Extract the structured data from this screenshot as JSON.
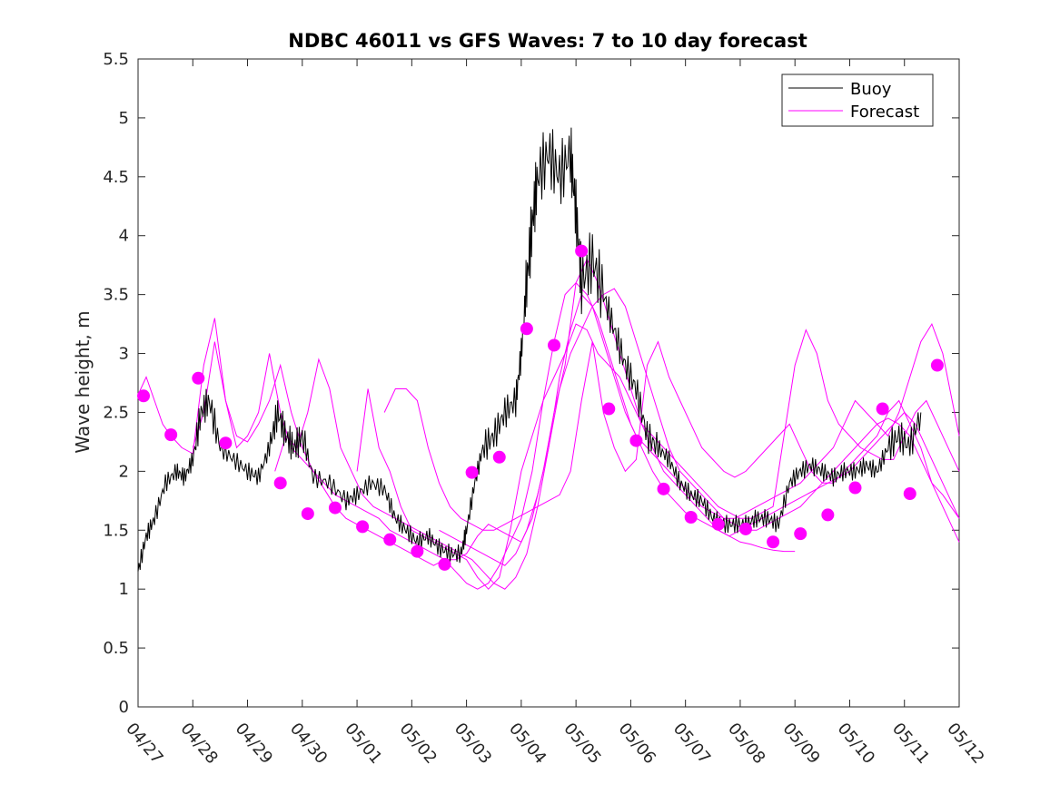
{
  "chart_data": {
    "type": "line",
    "title": "NDBC 46011 vs GFS Waves: 7 to 10 day forecast",
    "xlabel": "",
    "ylabel": "Wave height, m",
    "xlim": [
      0,
      15
    ],
    "ylim": [
      0,
      5.5
    ],
    "x_units": "days since 04/27",
    "x_tick_values": [
      0,
      1,
      2,
      3,
      4,
      5,
      6,
      7,
      8,
      9,
      10,
      11,
      12,
      13,
      14,
      15
    ],
    "x_tick_labels": [
      "04/27",
      "04/28",
      "04/29",
      "04/30",
      "05/01",
      "05/02",
      "05/03",
      "05/04",
      "05/05",
      "05/06",
      "05/07",
      "05/08",
      "05/09",
      "05/10",
      "05/11",
      "05/12"
    ],
    "y_tick_values": [
      0,
      0.5,
      1,
      1.5,
      2,
      2.5,
      3,
      3.5,
      4,
      4.5,
      5,
      5.5
    ],
    "y_tick_labels": [
      "0",
      "0.5",
      "1",
      "1.5",
      "2",
      "2.5",
      "3",
      "3.5",
      "4",
      "4.5",
      "5",
      "5.5"
    ],
    "grid": false,
    "legend_position": "top-right",
    "legend": [
      {
        "name": "Buoy",
        "color": "#000000",
        "marker": "line"
      },
      {
        "name": "Forecast",
        "color": "#ff00ff",
        "marker": "line"
      }
    ],
    "colors": {
      "buoy": "#000000",
      "forecast": "#ff00ff"
    },
    "buoy_series": {
      "name": "Buoy",
      "x": [
        0,
        0.15,
        0.3,
        0.5,
        0.7,
        0.85,
        1.0,
        1.15,
        1.3,
        1.5,
        1.75,
        2.0,
        2.2,
        2.4,
        2.55,
        2.7,
        2.85,
        3.0,
        3.2,
        3.5,
        3.8,
        4.0,
        4.25,
        4.5,
        4.7,
        4.9,
        5.1,
        5.3,
        5.5,
        5.7,
        5.9,
        6.0,
        6.15,
        6.3,
        6.5,
        6.7,
        6.9,
        7.0,
        7.1,
        7.2,
        7.3,
        7.5,
        7.7,
        7.9,
        8.0,
        8.1,
        8.3,
        8.5,
        8.7,
        8.9,
        9.1,
        9.3,
        9.5,
        9.7,
        9.9,
        10.1,
        10.3,
        10.5,
        10.7,
        10.9,
        11.1,
        11.3,
        11.5,
        11.7,
        11.9,
        12.1,
        12.3,
        12.5,
        12.7,
        12.9,
        13.1,
        13.3,
        13.5,
        13.7,
        13.9,
        14.1,
        14.3
      ],
      "y": [
        1.15,
        1.45,
        1.6,
        1.9,
        2.0,
        1.95,
        2.1,
        2.5,
        2.6,
        2.2,
        2.1,
        2.0,
        1.95,
        2.2,
        2.5,
        2.3,
        2.2,
        2.3,
        1.95,
        1.9,
        1.75,
        1.8,
        1.9,
        1.85,
        1.6,
        1.5,
        1.4,
        1.45,
        1.35,
        1.3,
        1.3,
        1.5,
        1.9,
        2.2,
        2.3,
        2.5,
        2.6,
        3.0,
        3.6,
        4.1,
        4.5,
        4.7,
        4.5,
        4.7,
        4.2,
        3.6,
        3.8,
        3.5,
        3.2,
        2.9,
        2.7,
        2.3,
        2.2,
        2.1,
        1.9,
        1.8,
        1.75,
        1.6,
        1.55,
        1.55,
        1.55,
        1.6,
        1.6,
        1.55,
        1.9,
        2.0,
        2.05,
        2.0,
        1.95,
        2.0,
        2.0,
        2.05,
        2.0,
        2.2,
        2.3,
        2.2,
        2.5
      ]
    },
    "forecast_lines": [
      {
        "x": [
          0.0,
          0.15,
          0.3,
          0.45,
          0.6,
          0.8,
          1.0,
          1.2,
          1.4,
          1.6,
          1.8,
          2.0,
          2.2,
          2.4,
          2.6,
          2.8,
          3.0,
          3.2,
          3.4,
          3.6,
          3.8,
          4.0,
          4.2,
          4.4,
          4.6,
          4.8,
          5.0,
          5.2,
          5.4,
          5.6,
          5.8,
          6.0,
          6.2,
          6.4,
          6.6,
          6.8,
          7.0,
          7.2,
          7.4,
          7.6,
          7.8,
          8.0,
          8.2,
          8.4,
          8.6,
          8.8,
          9.0,
          9.2,
          9.4,
          9.6,
          9.8,
          10.0,
          10.2,
          10.4,
          10.6,
          10.8,
          11.0,
          11.2,
          11.4,
          11.6,
          11.8,
          12.0,
          12.2,
          12.4,
          12.6,
          12.8,
          13.0,
          13.2,
          13.4,
          13.6,
          13.8,
          14.0,
          14.2,
          14.4,
          14.6,
          14.8,
          15.0
        ],
        "y": [
          2.65,
          2.8,
          2.6,
          2.4,
          2.3,
          2.2,
          2.15,
          2.9,
          3.3,
          2.6,
          2.3,
          2.25,
          2.4,
          2.6,
          2.9,
          2.5,
          2.2,
          2.0,
          1.85,
          1.7,
          1.6,
          1.55,
          1.5,
          1.45,
          1.4,
          1.35,
          1.3,
          1.25,
          1.2,
          1.25,
          1.25,
          1.3,
          1.45,
          1.55,
          1.5,
          1.45,
          1.4,
          1.6,
          2.0,
          2.5,
          2.9,
          3.6,
          3.8,
          3.6,
          3.3,
          3.0,
          2.7,
          2.4,
          2.2,
          2.0,
          1.9,
          1.8,
          1.7,
          1.6,
          1.5,
          1.45,
          1.5,
          1.55,
          1.6,
          1.65,
          1.7,
          1.75,
          1.8,
          1.85,
          1.9,
          1.95,
          2.0,
          2.1,
          2.2,
          2.3,
          2.4,
          2.5,
          2.4,
          2.2,
          2.0,
          1.8,
          1.6
        ]
      },
      {
        "x": [
          1.0,
          1.2,
          1.4,
          1.6,
          1.8,
          2.0,
          2.2,
          2.4,
          2.6,
          2.8,
          3.0,
          3.2,
          3.4,
          3.6,
          3.8,
          4.0,
          4.2,
          4.4,
          4.6,
          4.8,
          5.0,
          5.2,
          5.4,
          5.6,
          5.8,
          6.0,
          6.2,
          6.4,
          6.6,
          6.8,
          7.0,
          7.2,
          7.4,
          7.6,
          7.8,
          8.0,
          8.2,
          8.4,
          8.6,
          8.8,
          9.0,
          9.2,
          9.4,
          9.6,
          9.8,
          10.0,
          10.2,
          10.4,
          10.6,
          10.8,
          11.0,
          11.2,
          11.4,
          11.6,
          11.8,
          12.0
        ],
        "y": [
          2.2,
          2.5,
          3.1,
          2.6,
          2.2,
          2.3,
          2.5,
          3.0,
          2.5,
          2.2,
          2.1,
          2.0,
          1.9,
          1.8,
          1.75,
          1.7,
          1.65,
          1.6,
          1.5,
          1.45,
          1.4,
          1.35,
          1.3,
          1.25,
          1.15,
          1.05,
          1.0,
          1.05,
          1.2,
          1.4,
          1.6,
          2.0,
          2.6,
          3.1,
          3.5,
          3.6,
          3.5,
          3.3,
          3.0,
          2.7,
          2.4,
          2.2,
          2.0,
          1.85,
          1.75,
          1.65,
          1.6,
          1.55,
          1.5,
          1.45,
          1.4,
          1.38,
          1.35,
          1.33,
          1.32,
          1.32
        ]
      },
      {
        "x": [
          2.5,
          2.7,
          2.9,
          3.1,
          3.3,
          3.5,
          3.7,
          3.9,
          4.1,
          4.3,
          4.5,
          4.7,
          4.9,
          5.1,
          5.3,
          5.5,
          5.7,
          5.9,
          6.1,
          6.3,
          6.5,
          6.7,
          6.9,
          7.1,
          7.3,
          7.5,
          7.7,
          7.9,
          8.1,
          8.3,
          8.5,
          8.7,
          8.9,
          9.1,
          9.3,
          9.5,
          9.7,
          9.9,
          10.1,
          10.3,
          10.5,
          10.7,
          10.9,
          11.1,
          11.3,
          11.5,
          11.7,
          11.9,
          12.1,
          12.3,
          12.5,
          12.7,
          12.9,
          13.1,
          13.3,
          13.5,
          13.7,
          13.9,
          14.1,
          14.3,
          14.5,
          14.7,
          15.0
        ],
        "y": [
          2.0,
          2.3,
          2.2,
          2.5,
          2.95,
          2.7,
          2.2,
          2.0,
          1.8,
          1.7,
          1.65,
          1.6,
          1.55,
          1.5,
          1.45,
          1.4,
          1.35,
          1.3,
          1.25,
          1.15,
          1.05,
          1.0,
          1.1,
          1.3,
          1.7,
          2.2,
          2.7,
          3.0,
          3.2,
          3.4,
          3.5,
          3.55,
          3.4,
          3.1,
          2.8,
          2.5,
          2.2,
          2.0,
          1.9,
          1.8,
          1.7,
          1.6,
          1.55,
          1.5,
          1.5,
          1.55,
          1.6,
          1.65,
          1.7,
          1.8,
          1.9,
          2.0,
          2.1,
          2.2,
          2.3,
          2.4,
          2.45,
          2.4,
          2.3,
          2.1,
          1.9,
          1.7,
          1.4
        ]
      },
      {
        "x": [
          4.0,
          4.2,
          4.4,
          4.6,
          4.8,
          5.0,
          5.2,
          5.4,
          5.6,
          5.8,
          6.0,
          6.2,
          6.4,
          6.6,
          6.8,
          7.0,
          7.2,
          7.4,
          7.6,
          7.8,
          8.0,
          8.2,
          8.4,
          8.6,
          8.8,
          9.0,
          9.2,
          9.4,
          9.6,
          9.8,
          10.0,
          10.2,
          10.4,
          10.6,
          10.8,
          11.0,
          11.2,
          11.4,
          11.6,
          11.8,
          12.0,
          12.2,
          12.4,
          12.6,
          12.8,
          13.0,
          13.2,
          13.4,
          13.6,
          13.8,
          14.0,
          14.2,
          14.4,
          14.6,
          14.8,
          15.0
        ],
        "y": [
          2.0,
          2.7,
          2.2,
          2.0,
          1.7,
          1.5,
          1.45,
          1.4,
          1.35,
          1.3,
          1.25,
          1.1,
          1.0,
          1.1,
          1.5,
          2.0,
          2.3,
          2.6,
          2.8,
          3.0,
          3.25,
          3.2,
          3.0,
          2.9,
          2.8,
          2.6,
          2.4,
          2.3,
          2.2,
          2.1,
          2.0,
          1.9,
          1.8,
          1.7,
          1.65,
          1.6,
          1.6,
          1.65,
          1.7,
          2.3,
          2.9,
          3.2,
          3.0,
          2.6,
          2.4,
          2.3,
          2.2,
          2.15,
          2.1,
          2.1,
          2.3,
          2.5,
          2.6,
          2.4,
          2.2,
          2.0
        ]
      },
      {
        "x": [
          4.5,
          4.7,
          4.9,
          5.1,
          5.3,
          5.5,
          5.7,
          5.9,
          6.1,
          6.3,
          6.5,
          6.7,
          6.9,
          7.1,
          7.3,
          7.5,
          7.7,
          7.9,
          8.1,
          8.3,
          8.5,
          8.7,
          8.9,
          9.1,
          9.3,
          9.5,
          9.7,
          9.9,
          10.1,
          10.3,
          10.5,
          10.7,
          10.9,
          11.1,
          11.3,
          11.5,
          11.7,
          11.9,
          12.1,
          12.3,
          12.5,
          12.7,
          12.9,
          13.1,
          13.3,
          13.5,
          13.7,
          13.9,
          14.1,
          14.3,
          14.5,
          14.7,
          15.0
        ],
        "y": [
          2.5,
          2.7,
          2.7,
          2.6,
          2.2,
          1.9,
          1.7,
          1.6,
          1.55,
          1.5,
          1.5,
          1.55,
          1.6,
          1.65,
          1.7,
          1.75,
          1.8,
          2.0,
          2.6,
          3.1,
          2.5,
          2.2,
          2.0,
          2.1,
          2.9,
          3.1,
          2.8,
          2.6,
          2.4,
          2.2,
          2.1,
          2.0,
          1.95,
          2.0,
          2.1,
          2.2,
          2.3,
          2.4,
          2.2,
          2.0,
          1.9,
          1.9,
          2.0,
          2.1,
          2.2,
          2.3,
          2.5,
          2.6,
          2.4,
          2.2,
          1.9,
          1.8,
          1.6
        ]
      },
      {
        "x": [
          5.5,
          5.7,
          5.9,
          6.1,
          6.3,
          6.5,
          6.7,
          6.9,
          7.1,
          7.3,
          7.5,
          7.7,
          7.9,
          8.1,
          8.3,
          8.5,
          8.7,
          8.9,
          9.1,
          9.3,
          9.5,
          9.7,
          9.9,
          10.1,
          10.3,
          10.5,
          10.7,
          10.9,
          11.1,
          11.3,
          11.5,
          11.7,
          11.9,
          12.1,
          12.3,
          12.5,
          12.7,
          12.9,
          13.1,
          13.3,
          13.5,
          13.7,
          13.9,
          14.1,
          14.3,
          14.5,
          14.7,
          15.0
        ],
        "y": [
          1.5,
          1.45,
          1.4,
          1.35,
          1.3,
          1.25,
          1.2,
          1.3,
          1.5,
          1.8,
          2.2,
          2.8,
          3.2,
          3.5,
          3.4,
          3.1,
          2.8,
          2.5,
          2.3,
          2.2,
          2.1,
          2.0,
          1.9,
          1.8,
          1.7,
          1.65,
          1.6,
          1.6,
          1.65,
          1.7,
          1.75,
          1.8,
          1.85,
          1.9,
          2.0,
          2.1,
          2.2,
          2.4,
          2.6,
          2.5,
          2.4,
          2.3,
          2.5,
          2.8,
          3.1,
          3.25,
          3.0,
          2.3
        ]
      }
    ],
    "forecast_markers": {
      "x": [
        0.1,
        0.6,
        1.1,
        1.6,
        2.6,
        3.1,
        3.6,
        4.1,
        4.6,
        5.1,
        5.6,
        6.1,
        6.6,
        7.1,
        7.6,
        8.1,
        8.6,
        9.1,
        9.6,
        10.1,
        10.6,
        11.1,
        11.6,
        12.1,
        12.6,
        13.1,
        13.6,
        14.1,
        14.6
      ],
      "y": [
        2.64,
        2.31,
        2.79,
        2.24,
        1.9,
        1.64,
        1.69,
        1.53,
        1.42,
        1.32,
        1.21,
        1.99,
        2.12,
        3.21,
        3.07,
        3.87,
        2.53,
        2.26,
        1.85,
        1.61,
        1.55,
        1.51,
        1.4,
        1.47,
        1.63,
        1.86,
        2.53,
        1.81,
        2.9
      ]
    }
  }
}
